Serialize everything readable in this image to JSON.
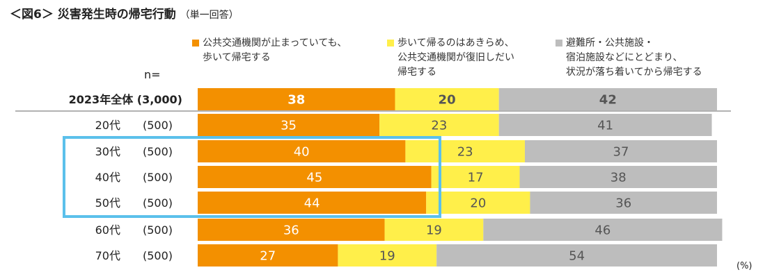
{
  "title": "＜図6＞ 災害発生時の帰宅行動",
  "subtitle": "（単一回答）",
  "n_label": "n=",
  "unit_label": "(%)",
  "legend": [
    {
      "label": "公共交通機関が止まっていても、\n歩いて帰宅する",
      "color": "#F39000"
    },
    {
      "label": "歩いて帰るのはあきらめ、\n公共交通機関が復旧しだい\n帰宅する",
      "color": "#FFEF4A"
    },
    {
      "label": "避難所・公共施設・\n宿泊施設などにとどまり、\n状況が落ち着いてから帰宅する",
      "color": "#BDBDBD"
    }
  ],
  "chart_data": {
    "type": "bar",
    "orientation": "horizontal",
    "stacked": true,
    "unit": "%",
    "categories": [
      "2023年全体",
      "20代",
      "30代",
      "40代",
      "50代",
      "60代",
      "70代"
    ],
    "sample_sizes": [
      "(3,000)",
      "(500)",
      "(500)",
      "(500)",
      "(500)",
      "(500)",
      "(500)"
    ],
    "series": [
      {
        "name": "公共交通機関が止まっていても、歩いて帰宅する",
        "color": "#F39000",
        "values": [
          38,
          35,
          40,
          45,
          44,
          36,
          27
        ]
      },
      {
        "name": "歩いて帰るのはあきらめ、公共交通機関が復旧しだい帰宅する",
        "color": "#FFEF4A",
        "values": [
          20,
          23,
          23,
          17,
          20,
          19,
          19
        ]
      },
      {
        "name": "避難所・公共施設・宿泊施設などにとどまり、状況が落ち着いてから帰宅する",
        "color": "#BDBDBD",
        "values": [
          42,
          41,
          37,
          38,
          36,
          46,
          54
        ]
      }
    ],
    "highlight_categories": [
      "30代",
      "40代",
      "50代"
    ],
    "highlight_color": "#5BC0EB",
    "bold_categories": [
      "2023年全体"
    ]
  }
}
